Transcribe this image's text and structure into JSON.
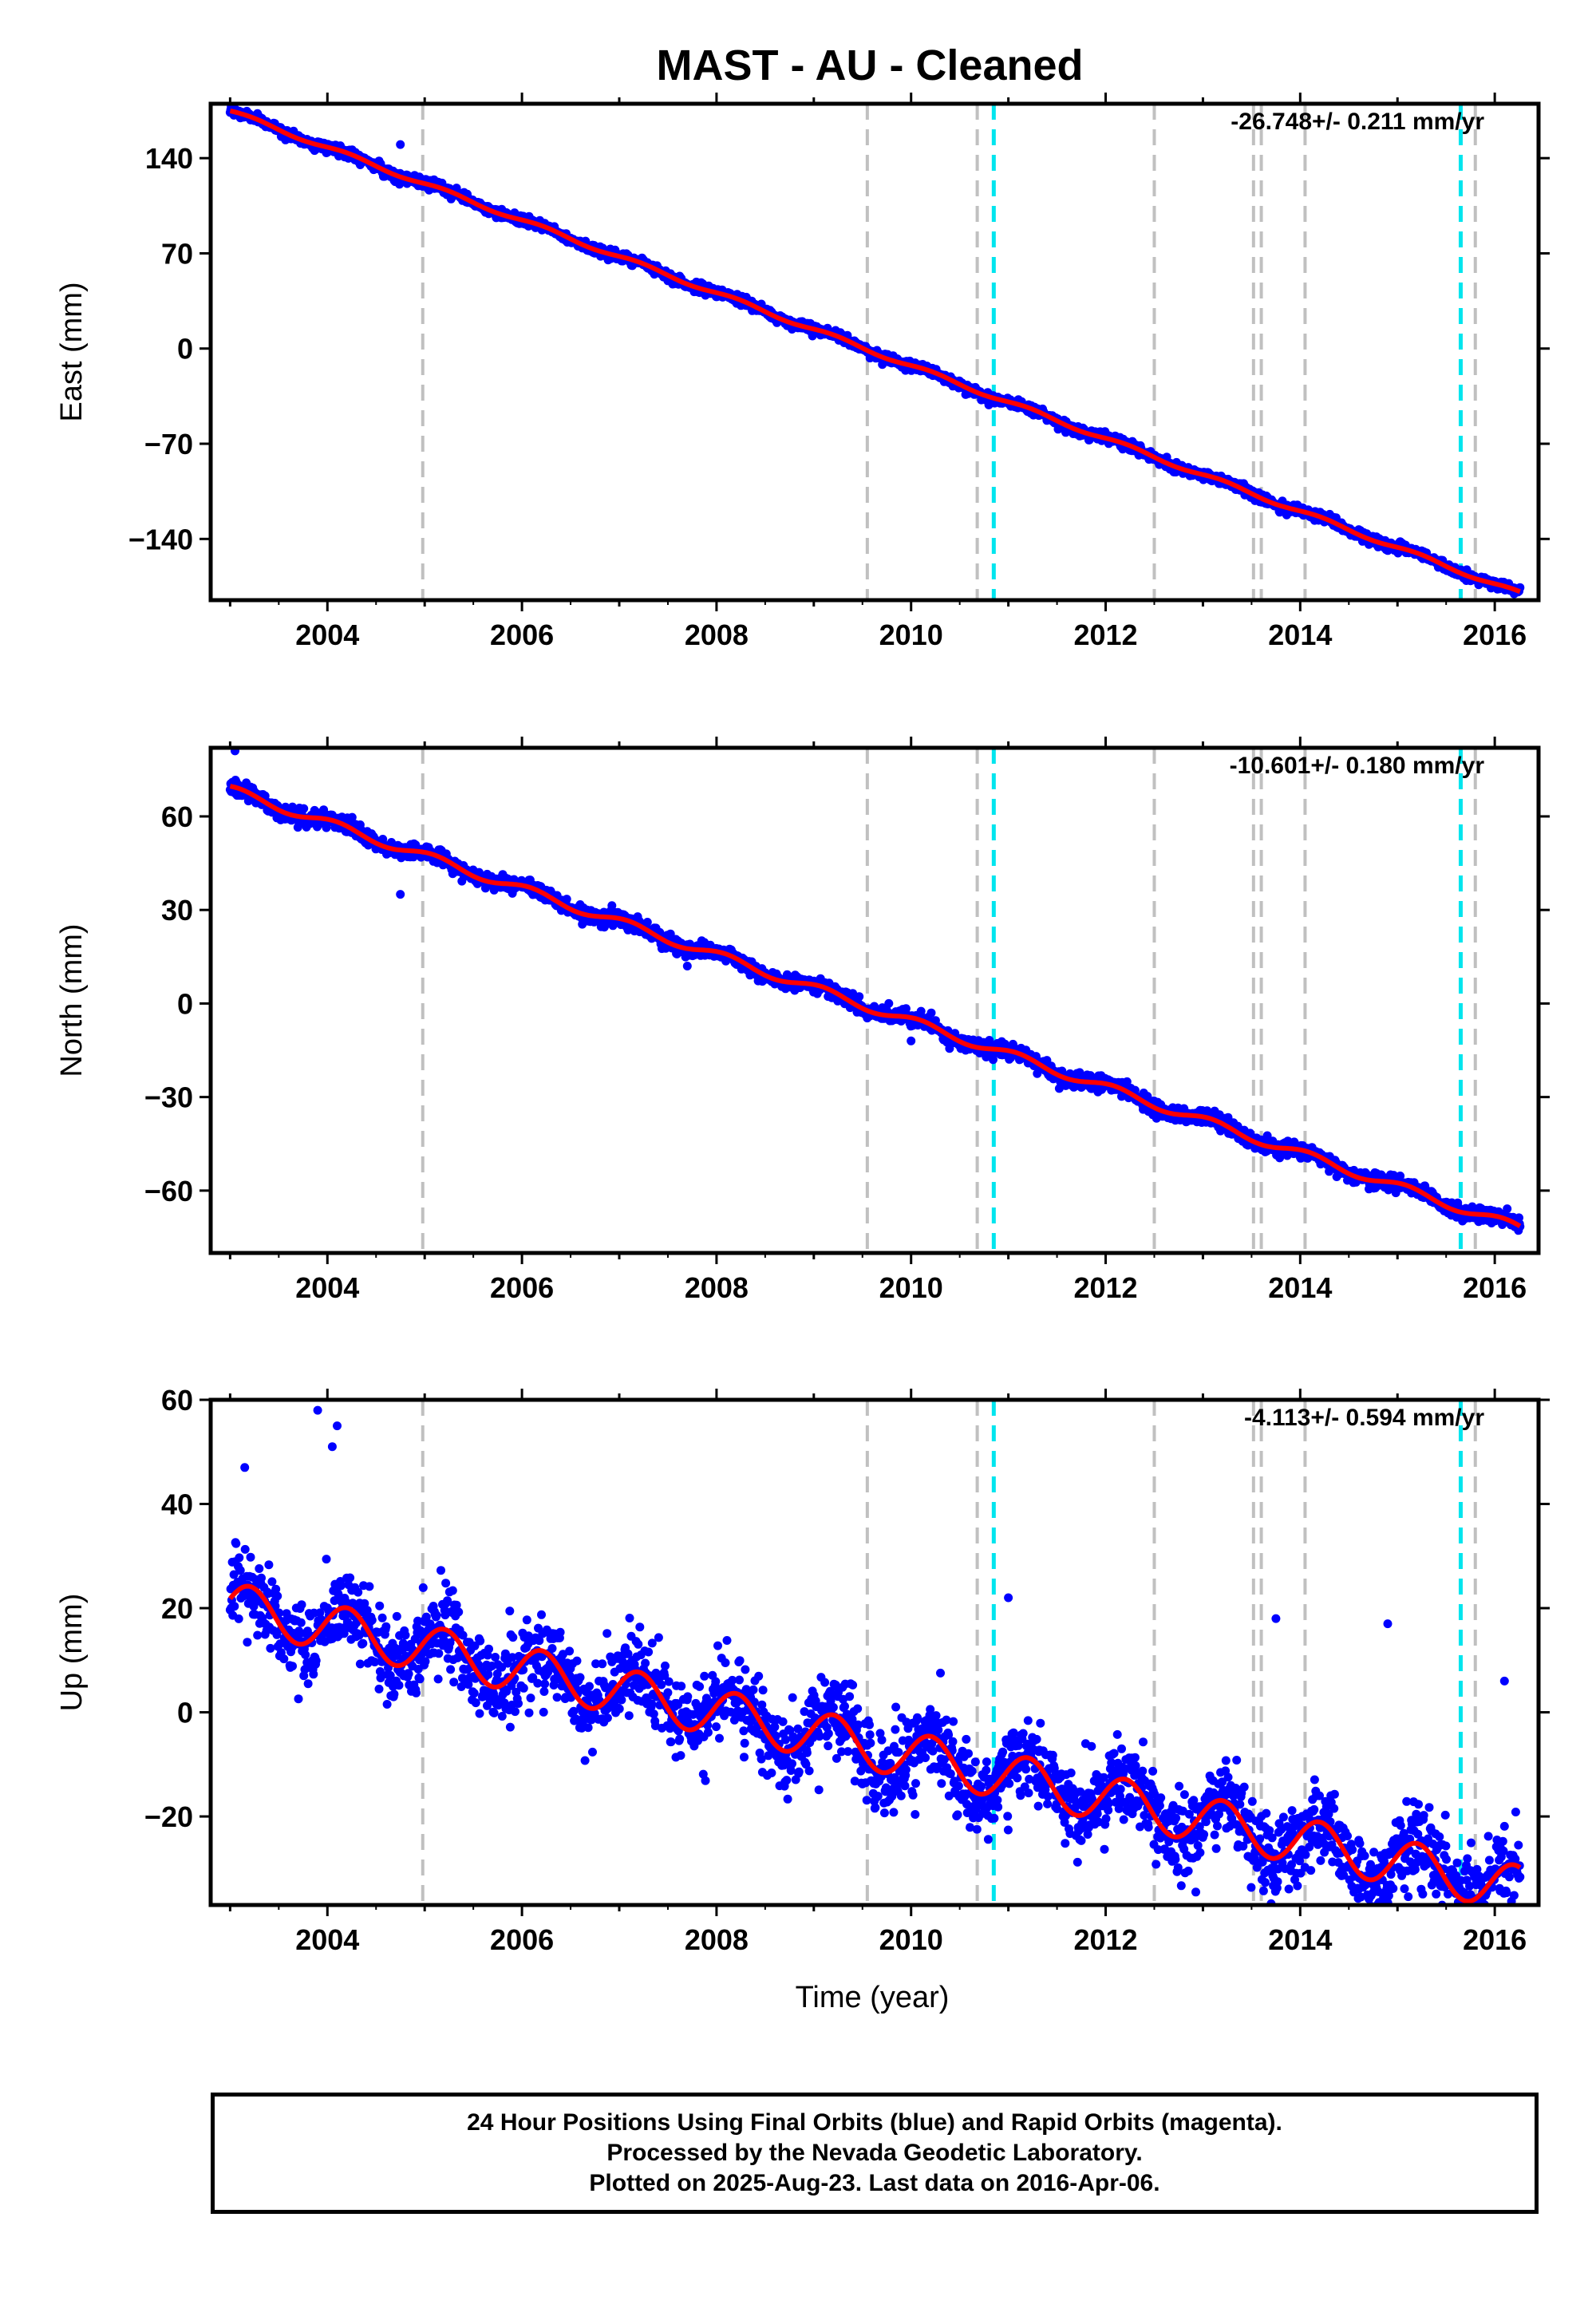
{
  "title": "MAST  - AU - Cleaned",
  "xlabel": "Time (year)",
  "footer": {
    "line1": "24 Hour Positions Using Final Orbits (blue) and Rapid Orbits (magenta).",
    "line2": "Processed by the Nevada Geodetic Laboratory.",
    "line3": "Plotted on 2025-Aug-23. Last data on 2016-Apr-06."
  },
  "colors": {
    "points": "#0000ff",
    "model": "#ff0000",
    "steps_gray": "#c0c0c0",
    "steps_cyan": "#00e5ee"
  },
  "events": {
    "gray": [
      2004.98,
      2009.55,
      2010.68,
      2012.5,
      2013.52,
      2013.6,
      2014.05,
      2015.8
    ],
    "cyan": [
      2010.85,
      2015.65
    ]
  },
  "chart_data": [
    {
      "type": "scatter",
      "ylabel": "East (mm)",
      "rate": "-26.748+/- 0.211 mm/yr",
      "xlim": [
        2002.8,
        2016.45
      ],
      "ylim": [
        -185,
        180
      ],
      "xticks": [
        2004,
        2006,
        2008,
        2010,
        2012,
        2014,
        2016
      ],
      "yticks": [
        140,
        70,
        0,
        -70,
        -140
      ],
      "ytick_labels": [
        "140",
        "70",
        "0",
        "−70",
        "−140"
      ],
      "x_range": [
        2003.0,
        2016.26
      ],
      "model": {
        "start": 2003.0,
        "intercept": 174.5,
        "rate": -26.748,
        "annual_amp": 1.5,
        "annual_phase": 0.2
      },
      "noise_sd": 1.8,
      "outliers": [
        [
          2004.75,
          150
        ]
      ]
    },
    {
      "type": "scatter",
      "ylabel": "North (mm)",
      "rate": "-10.601+/- 0.180 mm/yr",
      "xlim": [
        2002.8,
        2016.45
      ],
      "ylim": [
        -80,
        82
      ],
      "xticks": [
        2004,
        2006,
        2008,
        2010,
        2012,
        2014,
        2016
      ],
      "yticks": [
        60,
        30,
        0,
        -30,
        -60
      ],
      "ytick_labels": [
        "60",
        "30",
        "0",
        "−30",
        "−60"
      ],
      "x_range": [
        2003.0,
        2016.26
      ],
      "model": {
        "start": 2003.0,
        "intercept": 68.5,
        "rate": -10.601,
        "annual_amp": 1.4,
        "annual_phase": 1.0
      },
      "noise_sd": 1.2,
      "outliers": [
        [
          2003.05,
          81
        ],
        [
          2004.75,
          35
        ],
        [
          2007.7,
          12
        ],
        [
          2010.0,
          -12
        ]
      ]
    },
    {
      "type": "scatter",
      "ylabel": "Up (mm)",
      "rate": "-4.113+/- 0.594 mm/yr",
      "xlim": [
        2002.8,
        2016.45
      ],
      "ylim": [
        -37,
        60
      ],
      "xticks": [
        2004,
        2006,
        2008,
        2010,
        2012,
        2014,
        2016
      ],
      "yticks": [
        60,
        40,
        20,
        0,
        -20
      ],
      "ytick_labels": [
        "60",
        "40",
        "20",
        "0",
        "−20"
      ],
      "x_range": [
        2003.0,
        2016.26
      ],
      "model": {
        "start": 2003.0,
        "intercept": 20.5,
        "rate": -4.113,
        "annual_amp": 4.5,
        "annual_phase": 0.3
      },
      "noise_sd": 4.0,
      "outliers": [
        [
          2003.9,
          58
        ],
        [
          2004.1,
          55
        ],
        [
          2004.05,
          51
        ],
        [
          2003.15,
          47
        ],
        [
          2011.0,
          22
        ],
        [
          2013.75,
          18
        ],
        [
          2014.9,
          17
        ],
        [
          2014.6,
          -34
        ],
        [
          2015.75,
          -35
        ],
        [
          2016.1,
          6
        ]
      ]
    }
  ]
}
